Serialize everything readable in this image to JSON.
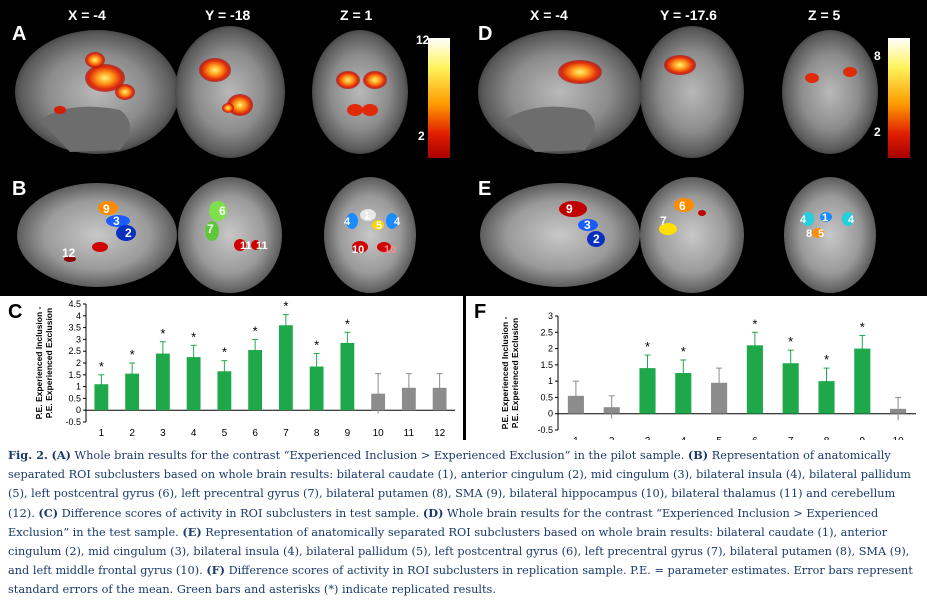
{
  "figure": {
    "panels": {
      "A": "A",
      "B": "B",
      "C": "C",
      "D": "D",
      "E": "E",
      "F": "F"
    },
    "left_coords": [
      "X = -4",
      "Y = -18",
      "Z = 1"
    ],
    "right_coords": [
      "X = -4",
      "Y = -17.6",
      "Z = 5"
    ],
    "colorbar_left": {
      "max": "12",
      "min": "2"
    },
    "colorbar_right": {
      "max": "8",
      "min": "2"
    },
    "roi_labels_left": {
      "sagittal": [
        "9",
        "3",
        "2",
        "12"
      ],
      "coronal": [
        "6",
        "7",
        "11",
        "11"
      ],
      "axial": [
        "4",
        "1",
        "5",
        "4",
        "10",
        "10"
      ]
    },
    "roi_labels_right": {
      "sagittal": [
        "9",
        "3",
        "2"
      ],
      "coronal": [
        "6",
        "7"
      ],
      "axial": [
        "4",
        "1",
        "4",
        "8",
        "5"
      ]
    },
    "ylabel_lines": [
      "P.E. Experienced Inclusion -",
      "P.E. Experienced Exclusion"
    ],
    "colors": {
      "green": "#1fa84a",
      "gray": "#8c8c8c",
      "caption": "#1a3a6a"
    }
  },
  "chart_data": [
    {
      "type": "bar",
      "panel": "C",
      "categories": [
        "1",
        "2",
        "3",
        "4",
        "5",
        "6",
        "7",
        "8",
        "9",
        "10",
        "11",
        "12"
      ],
      "values": [
        1.1,
        1.55,
        2.4,
        2.25,
        1.65,
        2.55,
        3.6,
        1.85,
        2.85,
        0.7,
        0.95,
        0.95
      ],
      "errors": [
        0.4,
        0.45,
        0.5,
        0.5,
        0.45,
        0.45,
        0.45,
        0.55,
        0.45,
        0.85,
        0.6,
        0.6
      ],
      "replicated": [
        true,
        true,
        true,
        true,
        true,
        true,
        true,
        true,
        true,
        false,
        false,
        false
      ],
      "asterisk": "*",
      "ylim": [
        -0.5,
        4.5
      ],
      "yticks": [
        "-0.5",
        "0",
        "0.5",
        "1",
        "1.5",
        "2",
        "2.5",
        "3",
        "3.5",
        "4",
        "4.5"
      ],
      "ylabel": [
        "P.E. Experienced Inclusion -",
        "P.E. Experienced Exclusion"
      ]
    },
    {
      "type": "bar",
      "panel": "F",
      "categories": [
        "1",
        "2",
        "3",
        "4",
        "5",
        "6",
        "7",
        "8",
        "9",
        "10"
      ],
      "values": [
        0.55,
        0.2,
        1.4,
        1.25,
        0.95,
        2.1,
        1.55,
        1.0,
        2.0,
        0.15
      ],
      "errors": [
        0.45,
        0.35,
        0.4,
        0.4,
        0.45,
        0.4,
        0.4,
        0.4,
        0.4,
        0.35
      ],
      "replicated": [
        false,
        false,
        true,
        true,
        false,
        true,
        true,
        true,
        true,
        false
      ],
      "asterisk": "*",
      "ylim": [
        -0.5,
        3
      ],
      "yticks": [
        "-0.5",
        "0",
        "0.5",
        "1",
        "1.5",
        "2",
        "2.5",
        "3"
      ],
      "ylabel": [
        "P.E. Experienced Inclusion -",
        "P.E. Experienced Exclusion"
      ]
    }
  ],
  "caption": {
    "fig_label": "Fig. 2.",
    "segments": [
      {
        "b": "(A)",
        "t": " Whole brain results for the contrast “Experienced Inclusion > Experienced Exclusion” in the pilot sample. "
      },
      {
        "b": "(B)",
        "t": " Representation of anatomically separated ROI subclusters based on whole brain results: bilateral caudate (1), anterior cingulum (2), mid cingulum (3), bilateral insula (4), bilateral pallidum (5), left postcentral gyrus (6), left precentral gyrus (7), bilateral putamen (8), SMA (9), bilateral hippocampus (10), bilateral thalamus (11) and cerebellum (12). "
      },
      {
        "b": "(C)",
        "t": " Difference scores of activity in ROI subclusters in test sample. "
      },
      {
        "b": "(D)",
        "t": " Whole brain results for the contrast “Experienced Inclusion > Experienced Exclusion” in the test sample. "
      },
      {
        "b": "(E)",
        "t": " Representation of anatomically separated ROI subclusters based on whole brain results: bilateral caudate (1), anterior cingulum (2), mid cingulum (3), bilateral insula (4), bilateral pallidum (5), left postcentral gyrus (6), left precentral gyrus (7), bilateral putamen (8), SMA (9), and left middle frontal gyrus (10). "
      },
      {
        "b": "(F)",
        "t": " Difference scores of activity in ROI subclusters in replication sample. P.E. = parameter estimates. Error bars represent standard errors of the mean. Green bars and asterisks (*) indicate replicated results."
      }
    ]
  }
}
